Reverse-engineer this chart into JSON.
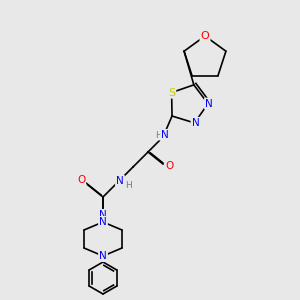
{
  "bg_color": "#e8e8e8",
  "bond_color": "#000000",
  "bond_width": 1.2,
  "atom_colors": {
    "N": "#0000ff",
    "O": "#ff0000",
    "S": "#cccc00",
    "C": "#000000",
    "H": "#7a7a7a"
  },
  "font_size": 7.5,
  "fig_size": [
    3.0,
    3.0
  ],
  "dpi": 100
}
